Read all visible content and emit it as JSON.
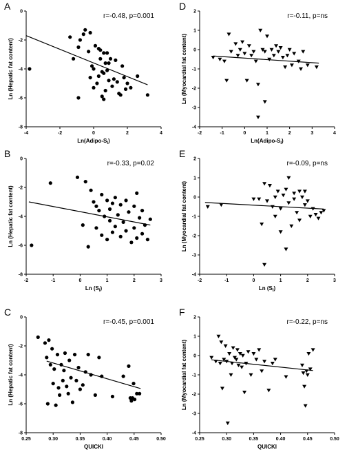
{
  "chart_data": [
    {
      "panel": "A",
      "type": "scatter",
      "marker": "circle",
      "annotation": "r=-0.48, p=0.001",
      "xlabel": "Ln(Adipo-S",
      "xlabel_sub": "I",
      "xlabel_after": ")",
      "ylabel": "Ln (Hepatic fat content)",
      "xlim": [
        -4,
        4
      ],
      "ylim": [
        -8,
        0
      ],
      "xticks": [
        -4,
        -2,
        0,
        2,
        4
      ],
      "xtick_labels": [
        "-4",
        "-2",
        "0",
        "2",
        "4"
      ],
      "yticks": [
        -8,
        -6,
        -4,
        -2,
        0
      ],
      "ytick_labels": [
        "-8",
        "-6",
        "-4",
        "-2",
        "0"
      ],
      "fit_line": [
        [
          -4,
          -1.7
        ],
        [
          3.2,
          -5.1
        ]
      ],
      "x": [
        -3.8,
        -1.4,
        -1.2,
        -0.9,
        -0.9,
        -0.8,
        -0.6,
        -0.5,
        -0.3,
        -0.2,
        -0.2,
        -0.1,
        0.0,
        0.0,
        0.1,
        0.2,
        0.3,
        0.3,
        0.4,
        0.4,
        0.5,
        0.5,
        0.6,
        0.6,
        0.6,
        0.7,
        0.7,
        0.8,
        0.8,
        0.9,
        0.9,
        1.0,
        1.1,
        1.2,
        1.3,
        1.4,
        1.5,
        1.6,
        1.7,
        1.8,
        1.9,
        2.0,
        2.2,
        2.6,
        3.2
      ],
      "y": [
        -4.0,
        -1.8,
        -3.3,
        -6.0,
        -2.5,
        -2.0,
        -1.6,
        -1.3,
        -2.8,
        -1.5,
        -4.6,
        -3.8,
        -4.0,
        -5.3,
        -2.4,
        -5.0,
        -2.6,
        -4.5,
        -3.3,
        -2.7,
        -4.2,
        -5.9,
        -2.9,
        -4.3,
        -6.1,
        -3.6,
        -5.5,
        -4.1,
        -2.9,
        -4.8,
        -3.6,
        -3.3,
        -5.2,
        -4.7,
        -3.4,
        -4.9,
        -5.7,
        -5.8,
        -3.8,
        -4.6,
        -5.4,
        -5.0,
        -5.3,
        -4.5,
        -5.8
      ]
    },
    {
      "panel": "D",
      "type": "scatter",
      "marker": "triangle-down",
      "annotation": "r=-0.11, p=ns",
      "xlabel": "Ln(Adipo-S",
      "xlabel_sub": "I",
      "xlabel_after": ")",
      "ylabel": "Ln (Myocardial fat content)",
      "xlim": [
        -2,
        4
      ],
      "ylim": [
        -4,
        2
      ],
      "xticks": [
        -2,
        -1,
        0,
        1,
        2,
        3,
        4
      ],
      "xtick_labels": [
        "-2",
        "-1",
        "0",
        "1",
        "2",
        "3",
        "4"
      ],
      "yticks": [
        -4,
        -3,
        -2,
        -1,
        0,
        1,
        2
      ],
      "ytick_labels": [
        "-4",
        "-3",
        "-2",
        "-1",
        "0",
        "1",
        "2"
      ],
      "fit_line": [
        [
          -1.4,
          -0.33
        ],
        [
          3.3,
          -0.7
        ]
      ],
      "x": [
        -1.4,
        -1.1,
        -0.9,
        -0.8,
        -0.7,
        -0.6,
        -0.4,
        -0.3,
        -0.2,
        -0.1,
        0.0,
        0.1,
        0.2,
        0.3,
        0.4,
        0.5,
        0.6,
        0.6,
        0.7,
        0.8,
        0.9,
        0.9,
        1.0,
        1.1,
        1.2,
        1.3,
        1.4,
        1.5,
        1.6,
        1.7,
        1.8,
        1.9,
        2.0,
        2.1,
        2.2,
        2.4,
        2.5,
        2.6,
        2.8,
        3.2
      ],
      "y": [
        -0.4,
        -0.5,
        -0.6,
        -1.6,
        0.8,
        -0.1,
        0.3,
        -0.3,
        0.0,
        0.4,
        -0.2,
        -1.6,
        0.2,
        -0.3,
        -0.1,
        -0.6,
        -3.5,
        -1.8,
        1.0,
        0.0,
        -0.1,
        -2.7,
        0.7,
        -0.5,
        0.0,
        -0.3,
        0.2,
        -0.1,
        0.1,
        -0.4,
        -0.9,
        -0.3,
        0.0,
        -0.8,
        -0.2,
        -0.6,
        -1.0,
        -0.1,
        -0.8,
        -0.9
      ]
    },
    {
      "panel": "B",
      "type": "scatter",
      "marker": "circle",
      "annotation": "r=-0.33, p=0.02",
      "xlabel": "Ln (S",
      "xlabel_sub": "I",
      "xlabel_after": ")",
      "ylabel": "Ln (Hepatic fat content)",
      "xlim": [
        -2,
        3
      ],
      "ylim": [
        -8,
        0
      ],
      "xticks": [
        -2,
        -1,
        0,
        1,
        2,
        3
      ],
      "xtick_labels": [
        "-2",
        "-1",
        "0",
        "1",
        "2",
        "3"
      ],
      "yticks": [
        -8,
        -6,
        -4,
        -2,
        0
      ],
      "ytick_labels": [
        "-8",
        "-6",
        "-4",
        "-2",
        "0"
      ],
      "fit_line": [
        [
          -1.9,
          -3.0
        ],
        [
          2.6,
          -4.6
        ]
      ],
      "x": [
        -1.8,
        -1.1,
        -0.1,
        0.1,
        0.2,
        0.3,
        0.4,
        0.5,
        0.6,
        0.6,
        0.7,
        0.8,
        0.8,
        0.9,
        1.0,
        1.0,
        1.1,
        1.1,
        1.2,
        1.2,
        1.3,
        1.3,
        1.4,
        1.5,
        1.5,
        1.6,
        1.7,
        1.7,
        1.8,
        1.9,
        2.0,
        2.0,
        2.1,
        2.1,
        2.2,
        2.3,
        2.3,
        2.4,
        2.5,
        2.6
      ],
      "y": [
        -6.0,
        -1.7,
        -1.3,
        -4.6,
        -1.6,
        -6.1,
        -2.2,
        -3.0,
        -3.3,
        -4.8,
        -3.6,
        -2.5,
        -5.3,
        -4.0,
        -2.9,
        -5.6,
        -3.5,
        -4.3,
        -3.1,
        -5.1,
        -2.7,
        -4.7,
        -3.9,
        -3.2,
        -5.4,
        -4.4,
        -2.9,
        -5.0,
        -3.7,
        -5.8,
        -3.3,
        -4.8,
        -2.4,
        -5.5,
        -4.1,
        -3.6,
        -5.2,
        -4.6,
        -5.6,
        -4.2
      ]
    },
    {
      "panel": "E",
      "type": "scatter",
      "marker": "triangle-down",
      "annotation": "r=-0.09, p=ns",
      "xlabel": "Ln (S",
      "xlabel_sub": "I",
      "xlabel_after": ")",
      "ylabel": "Ln (Myocardial fat content)",
      "xlim": [
        -2,
        3
      ],
      "ylim": [
        -4,
        2
      ],
      "xticks": [
        -2,
        -1,
        0,
        1,
        2,
        3
      ],
      "xtick_labels": [
        "-2",
        "-1",
        "0",
        "1",
        "2",
        "3"
      ],
      "yticks": [
        -4,
        -3,
        -2,
        -1,
        0,
        1,
        2
      ],
      "ytick_labels": [
        "-4",
        "-3",
        "-2",
        "-1",
        "0",
        "1",
        "2"
      ],
      "fit_line": [
        [
          -1.8,
          -0.28
        ],
        [
          2.6,
          -0.62
        ]
      ],
      "x": [
        -1.7,
        -1.2,
        0.0,
        0.2,
        0.3,
        0.4,
        0.4,
        0.5,
        0.6,
        0.7,
        0.8,
        0.8,
        0.9,
        1.0,
        1.0,
        1.1,
        1.2,
        1.2,
        1.3,
        1.3,
        1.4,
        1.5,
        1.5,
        1.6,
        1.7,
        1.7,
        1.8,
        1.9,
        1.9,
        2.0,
        2.1,
        2.2,
        2.3,
        2.4,
        2.5,
        2.6
      ],
      "y": [
        -0.5,
        -0.4,
        -0.1,
        -0.1,
        -1.4,
        0.7,
        -3.5,
        -0.2,
        0.6,
        -0.5,
        0.0,
        -1.0,
        0.3,
        -0.6,
        -1.8,
        0.1,
        -2.7,
        0.4,
        1.0,
        -0.3,
        -1.5,
        -0.1,
        0.2,
        -0.8,
        0.3,
        -1.2,
        0.0,
        -0.4,
        0.3,
        -0.2,
        -1.0,
        -0.6,
        -0.9,
        -1.1,
        -0.8,
        -0.7
      ]
    },
    {
      "panel": "C",
      "type": "scatter",
      "marker": "circle",
      "annotation": "r=-0.45, p=0.001",
      "xlabel": "QUICKI",
      "xlabel_sub": "",
      "xlabel_after": "",
      "ylabel": "Ln (Hepatic fat content)",
      "xlim": [
        0.25,
        0.5
      ],
      "ylim": [
        -8,
        0
      ],
      "xticks": [
        0.25,
        0.3,
        0.35,
        0.4,
        0.45,
        0.5
      ],
      "xtick_labels": [
        "0.25",
        "0.30",
        "0.35",
        "0.40",
        "0.45",
        "0.50"
      ],
      "yticks": [
        -8,
        -6,
        -4,
        -2,
        0
      ],
      "ytick_labels": [
        "-8",
        "-6",
        "-4",
        "-2",
        "0"
      ],
      "fit_line": [
        [
          0.288,
          -3.05
        ],
        [
          0.462,
          -4.95
        ]
      ],
      "x": [
        0.272,
        0.285,
        0.288,
        0.29,
        0.292,
        0.295,
        0.298,
        0.3,
        0.302,
        0.305,
        0.308,
        0.31,
        0.312,
        0.315,
        0.318,
        0.32,
        0.322,
        0.325,
        0.328,
        0.33,
        0.333,
        0.336,
        0.34,
        0.343,
        0.347,
        0.35,
        0.355,
        0.36,
        0.365,
        0.37,
        0.378,
        0.385,
        0.39,
        0.41,
        0.43,
        0.44,
        0.443,
        0.445,
        0.447,
        0.449,
        0.451,
        0.455,
        0.46
      ],
      "y": [
        -1.4,
        -1.8,
        -2.8,
        -6.0,
        -1.6,
        -3.3,
        -2.2,
        -4.6,
        -3.6,
        -6.1,
        -2.6,
        -4.9,
        -5.4,
        -3.3,
        -4.4,
        -3.7,
        -2.5,
        -4.8,
        -5.3,
        -3.0,
        -4.2,
        -5.9,
        -2.6,
        -4.4,
        -3.5,
        -5.0,
        -4.7,
        -3.8,
        -2.6,
        -4.0,
        -5.4,
        -2.8,
        -4.1,
        -5.5,
        -4.1,
        -3.4,
        -5.6,
        -5.8,
        -5.6,
        -4.6,
        -5.7,
        -5.3,
        -5.3
      ]
    },
    {
      "panel": "F",
      "type": "scatter",
      "marker": "triangle-down",
      "annotation": "r=-0.22, p=ns",
      "xlabel": "QUICKI",
      "xlabel_sub": "",
      "xlabel_after": "",
      "ylabel": "Ln (Myocardial fat content)",
      "xlim": [
        0.25,
        0.5
      ],
      "ylim": [
        -4,
        2
      ],
      "xticks": [
        0.25,
        0.3,
        0.35,
        0.4,
        0.45,
        0.5
      ],
      "xtick_labels": [
        "0.25",
        "0.30",
        "0.35",
        "0.40",
        "0.45",
        "0.50"
      ],
      "yticks": [
        -4,
        -3,
        -2,
        -1,
        0,
        1,
        2
      ],
      "ytick_labels": [
        "-4",
        "-3",
        "-2",
        "-1",
        "0",
        "1",
        "2"
      ],
      "fit_line": [
        [
          0.272,
          -0.22
        ],
        [
          0.46,
          -0.78
        ]
      ],
      "x": [
        0.272,
        0.28,
        0.285,
        0.288,
        0.29,
        0.292,
        0.295,
        0.298,
        0.3,
        0.302,
        0.305,
        0.308,
        0.31,
        0.312,
        0.315,
        0.318,
        0.32,
        0.322,
        0.325,
        0.328,
        0.33,
        0.333,
        0.336,
        0.34,
        0.345,
        0.35,
        0.355,
        0.36,
        0.365,
        0.37,
        0.378,
        0.385,
        0.39,
        0.41,
        0.44,
        0.442,
        0.444,
        0.446,
        0.448,
        0.45,
        0.452,
        0.455,
        0.46
      ],
      "y": [
        -0.1,
        -0.3,
        1.0,
        -0.4,
        0.7,
        -1.7,
        -0.2,
        0.5,
        -0.3,
        -3.5,
        0.1,
        -1.0,
        -0.4,
        0.4,
        -0.1,
        -0.2,
        0.3,
        -0.5,
        0.1,
        -0.6,
        0.0,
        -1.9,
        -0.4,
        0.2,
        -1.0,
        0.1,
        -0.2,
        0.3,
        -0.8,
        -0.3,
        -1.8,
        -0.4,
        -0.2,
        -1.1,
        -0.5,
        -0.9,
        -1.6,
        -2.6,
        -0.8,
        -1.0,
        0.1,
        -0.7,
        0.3
      ]
    }
  ]
}
